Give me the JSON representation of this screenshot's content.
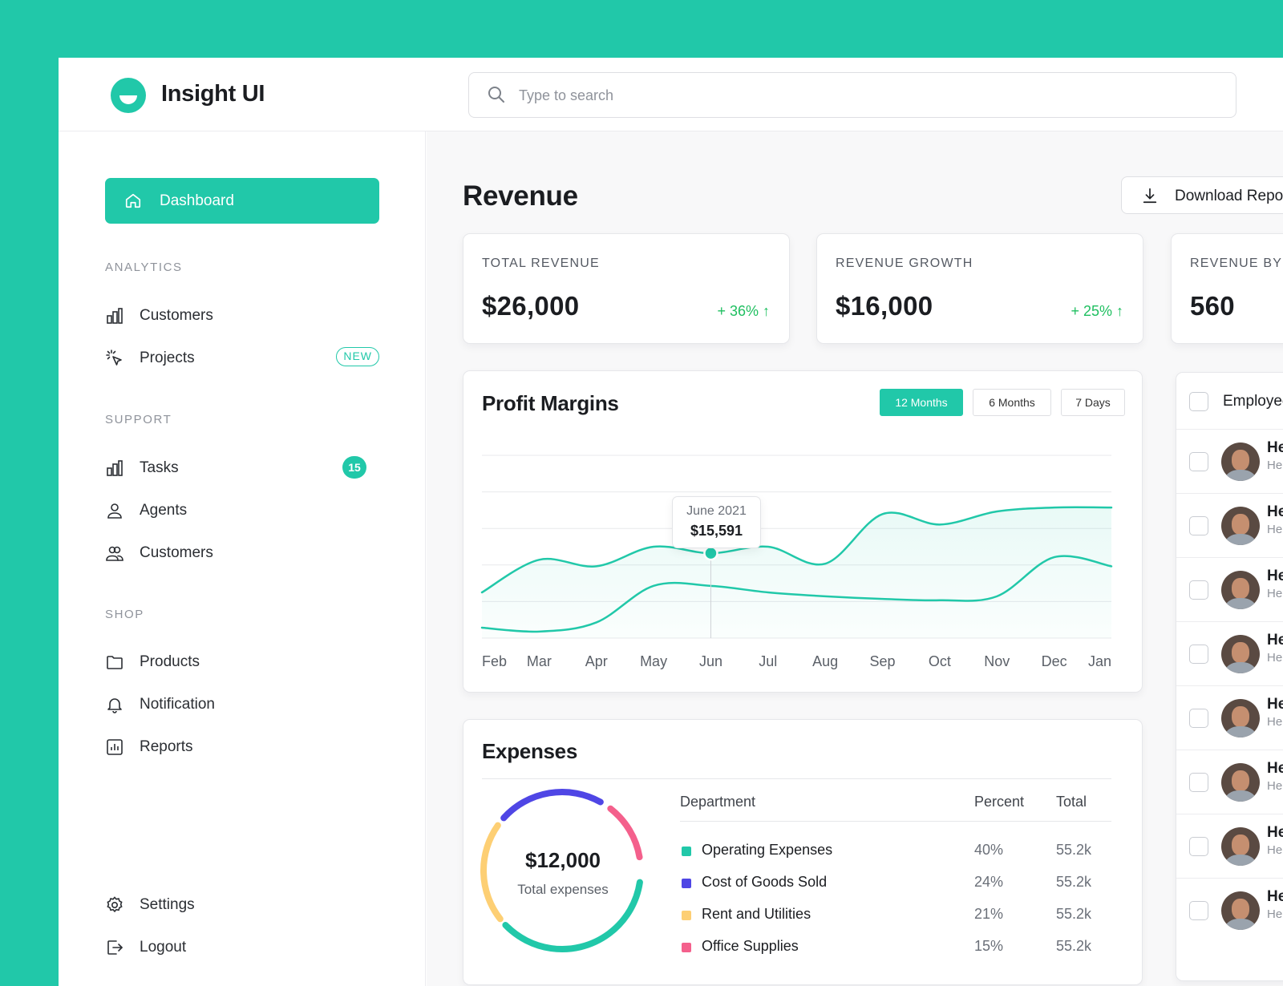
{
  "app": {
    "name": "Insight UI"
  },
  "search": {
    "placeholder": "Type to search"
  },
  "sidebar": {
    "active": {
      "label": "Dashboard",
      "icon": "home-icon"
    },
    "sections": [
      {
        "title": "ANALYTICS",
        "items": [
          {
            "label": "Customers",
            "icon": "bar-chart-icon"
          },
          {
            "label": "Projects",
            "icon": "cursor-click-icon",
            "badge": "NEW"
          }
        ]
      },
      {
        "title": "SUPPORT",
        "items": [
          {
            "label": "Tasks",
            "icon": "bar-chart-icon",
            "count": "15"
          },
          {
            "label": "Agents",
            "icon": "user-icon"
          },
          {
            "label": "Customers",
            "icon": "users-icon"
          }
        ]
      },
      {
        "title": "SHOP",
        "items": [
          {
            "label": "Products",
            "icon": "folder-icon"
          },
          {
            "label": "Notification",
            "icon": "bell-icon"
          },
          {
            "label": "Reports",
            "icon": "report-icon"
          }
        ]
      }
    ],
    "footer": [
      {
        "label": "Settings",
        "icon": "gear-icon"
      },
      {
        "label": "Logout",
        "icon": "logout-icon"
      }
    ]
  },
  "main": {
    "title": "Revenue",
    "download_label": "Download Report"
  },
  "stats": [
    {
      "label": "TOTAL REVENUE",
      "value": "$26,000",
      "delta": "+ 36% ↑"
    },
    {
      "label": "REVENUE GROWTH",
      "value": "$16,000",
      "delta": "+ 25% ↑"
    },
    {
      "label": "REVENUE BY",
      "value": "560"
    }
  ],
  "profit": {
    "title": "Profit Margins",
    "ranges": [
      "12 Months",
      "6 Months",
      "7 Days"
    ],
    "selected_range": "12 Months",
    "tooltip": {
      "date": "June 2021",
      "value": "$15,591"
    }
  },
  "chart_data": {
    "type": "area",
    "title": "Profit Margins",
    "categories": [
      "Feb",
      "Mar",
      "Apr",
      "May",
      "Jun",
      "Jul",
      "Aug",
      "Sep",
      "Oct",
      "Nov",
      "Dec",
      "Jan"
    ],
    "series": [
      {
        "values": [
          0.35,
          0.6,
          0.55,
          0.7,
          0.65,
          0.7,
          0.57,
          0.95,
          0.87,
          0.97,
          1.0,
          1.0
        ]
      },
      {
        "values": [
          0.08,
          0.05,
          0.12,
          0.4,
          0.4,
          0.35,
          0.32,
          0.3,
          0.29,
          0.32,
          0.62,
          0.55
        ]
      }
    ],
    "ylim": [
      0,
      1.4
    ],
    "grid": true,
    "highlight": {
      "category": "Jun",
      "label": "June 2021",
      "value": 15591
    }
  },
  "expenses": {
    "title": "Expenses",
    "total": "$12,000",
    "total_label": "Total expenses",
    "columns": [
      "Department",
      "Percent",
      "Total"
    ],
    "rows": [
      {
        "name": "Operating Expenses",
        "percent": "40%",
        "total": "55.2k",
        "color": "#21C8A9"
      },
      {
        "name": "Cost of Goods Sold",
        "percent": "24%",
        "total": "55.2k",
        "color": "#4F46E5"
      },
      {
        "name": "Rent and Utilities",
        "percent": "21%",
        "total": "55.2k",
        "color": "#FDCF74"
      },
      {
        "name": "Office Supplies",
        "percent": "15%",
        "total": "55.2k",
        "color": "#F4608C"
      }
    ]
  },
  "employees": {
    "header": "Employees",
    "rows": [
      {
        "name": "He",
        "sub": "He"
      },
      {
        "name": "He",
        "sub": "He"
      },
      {
        "name": "He",
        "sub": "He"
      },
      {
        "name": "He",
        "sub": "He"
      },
      {
        "name": "He",
        "sub": "He"
      },
      {
        "name": "He",
        "sub": "He"
      },
      {
        "name": "He",
        "sub": "He"
      },
      {
        "name": "He",
        "sub": "He"
      }
    ]
  },
  "colors": {
    "accent": "#21C8A9",
    "positive": "#1FBF60",
    "background": "#F8F8F9"
  }
}
